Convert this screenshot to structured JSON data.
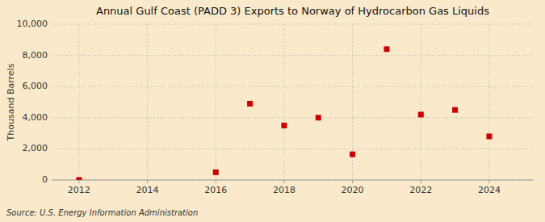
{
  "chart_data": {
    "type": "scatter",
    "title": "Annual Gulf Coast (PADD 3) Exports to Norway of Hydrocarbon Gas Liquids",
    "y_label": "Thousand Barrels",
    "source": "Source: U.S. Energy Information Administration",
    "x": [
      2012,
      2016,
      2017,
      2018,
      2019,
      2020,
      2021,
      2022,
      2023,
      2024
    ],
    "values": [
      4,
      500,
      4900,
      3500,
      4000,
      1650,
      8400,
      4200,
      4500,
      2800
    ],
    "xlim": [
      2011.2,
      2025.3
    ],
    "ylim": [
      0,
      10000
    ],
    "xticks": [
      2012,
      2014,
      2016,
      2018,
      2020,
      2022,
      2024
    ],
    "yticks": [
      0,
      {
        "value": 2000,
        "label": "2,000"
      },
      {
        "value": 4000,
        "label": "4,000"
      },
      {
        "value": 6000,
        "label": "6,000"
      },
      {
        "value": 8000,
        "label": "8,000"
      },
      {
        "value": 10000,
        "label": "10,000"
      }
    ],
    "color": "#cc0000",
    "marker": "square",
    "grid": true
  }
}
